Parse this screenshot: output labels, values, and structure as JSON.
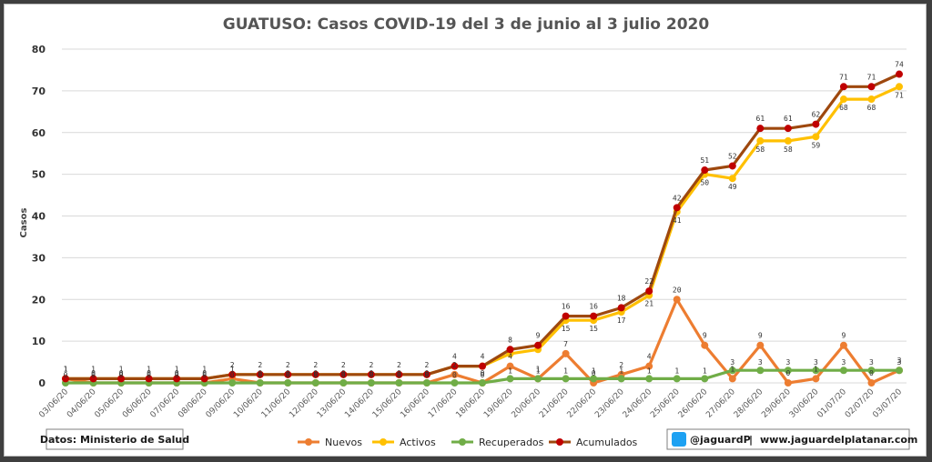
{
  "chart_data": {
    "type": "line",
    "title": "GUATUSO: Casos COVID-19 del 3 de junio al 3 julio 2020",
    "ylabel": "Casos",
    "xlabel": "",
    "ylim": [
      0,
      80
    ],
    "yticks": [
      "0",
      "10",
      "20",
      "30",
      "40",
      "50",
      "60",
      "70",
      "80"
    ],
    "grid": true,
    "legend_position": "bottom",
    "categories": [
      "03/06/20",
      "04/06/20",
      "05/06/20",
      "06/06/20",
      "07/06/20",
      "08/06/20",
      "09/06/20",
      "10/06/20",
      "11/06/20",
      "12/06/20",
      "13/06/20",
      "14/06/20",
      "15/06/20",
      "16/06/20",
      "17/06/20",
      "18/06/20",
      "19/06/20",
      "20/06/20",
      "21/06/20",
      "22/06/20",
      "23/06/20",
      "24/06/20",
      "25/06/20",
      "26/06/20",
      "27/06/20",
      "28/06/20",
      "29/06/20",
      "30/06/20",
      "01/07/20",
      "02/07/20",
      "03/07/20"
    ],
    "series": [
      {
        "name": "Nuevos",
        "color": "#ed7d31",
        "values": [
          1,
          0,
          0,
          0,
          0,
          0,
          1,
          0,
          0,
          0,
          0,
          0,
          0,
          0,
          2,
          0,
          4,
          1,
          7,
          0,
          2,
          4,
          20,
          9,
          1,
          9,
          0,
          1,
          9,
          0,
          3
        ],
        "labels": [
          "1",
          "0",
          "0",
          "0",
          "0",
          "0",
          "1",
          "0",
          "0",
          "0",
          "0",
          "0",
          "0",
          "0",
          "2",
          "0",
          "4",
          "1",
          "7",
          "0",
          "2",
          "4",
          "20",
          "9",
          "1",
          "9",
          "0",
          "1",
          "9",
          "0",
          "3"
        ]
      },
      {
        "name": "Activos",
        "color": "#ffc000",
        "values": [
          1,
          1,
          1,
          1,
          1,
          1,
          2,
          2,
          2,
          2,
          2,
          2,
          2,
          2,
          4,
          4,
          7,
          8,
          15,
          15,
          17,
          21,
          41,
          50,
          49,
          58,
          58,
          59,
          68,
          68,
          71
        ],
        "labels": [
          "",
          "",
          "",
          "",
          "",
          "",
          "",
          "",
          "",
          "",
          "",
          "",
          "",
          "",
          "",
          "",
          "",
          "",
          "15",
          "15",
          "17",
          "21",
          "41",
          "50",
          "49",
          "58",
          "58",
          "59",
          "68",
          "68",
          "71"
        ]
      },
      {
        "name": "Recuperados",
        "color": "#70ad47",
        "values": [
          0,
          0,
          0,
          0,
          0,
          0,
          0,
          0,
          0,
          0,
          0,
          0,
          0,
          0,
          0,
          0,
          1,
          1,
          1,
          1,
          1,
          1,
          1,
          1,
          3,
          3,
          3,
          3,
          3,
          3,
          3
        ],
        "labels": [
          "0",
          "0",
          "0",
          "0",
          "0",
          "0",
          "0",
          "0",
          "0",
          "0",
          "0",
          "0",
          "0",
          "0",
          "0",
          "0",
          "1",
          "1",
          "1",
          "1",
          "1",
          "1",
          "1",
          "1",
          "3",
          "3",
          "3",
          "3",
          "3",
          "3",
          "3"
        ]
      },
      {
        "name": "Acumulados",
        "color": "#9e480e",
        "marker": "#c00000",
        "values": [
          1,
          1,
          1,
          1,
          1,
          1,
          2,
          2,
          2,
          2,
          2,
          2,
          2,
          2,
          4,
          4,
          8,
          9,
          16,
          16,
          18,
          22,
          42,
          51,
          52,
          61,
          61,
          62,
          71,
          71,
          74
        ],
        "labels": [
          "1",
          "1",
          "1",
          "1",
          "1",
          "1",
          "2",
          "2",
          "2",
          "2",
          "2",
          "2",
          "2",
          "2",
          "4",
          "4",
          "8",
          "9",
          "16",
          "16",
          "18",
          "22",
          "42",
          "51",
          "52",
          "61",
          "61",
          "62",
          "71",
          "71",
          "74"
        ]
      }
    ]
  },
  "source_note": "Datos: Ministerio de Salud",
  "credit": {
    "icon": "twitter-bird-icon",
    "handle": "@jaguardP",
    "separator": "|",
    "website": "www.jaguardelplatanar.com"
  },
  "colors": {
    "twitter": "#1da1f2",
    "frame_bg": "#3f3f3f",
    "grid": "#d9d9d9"
  }
}
